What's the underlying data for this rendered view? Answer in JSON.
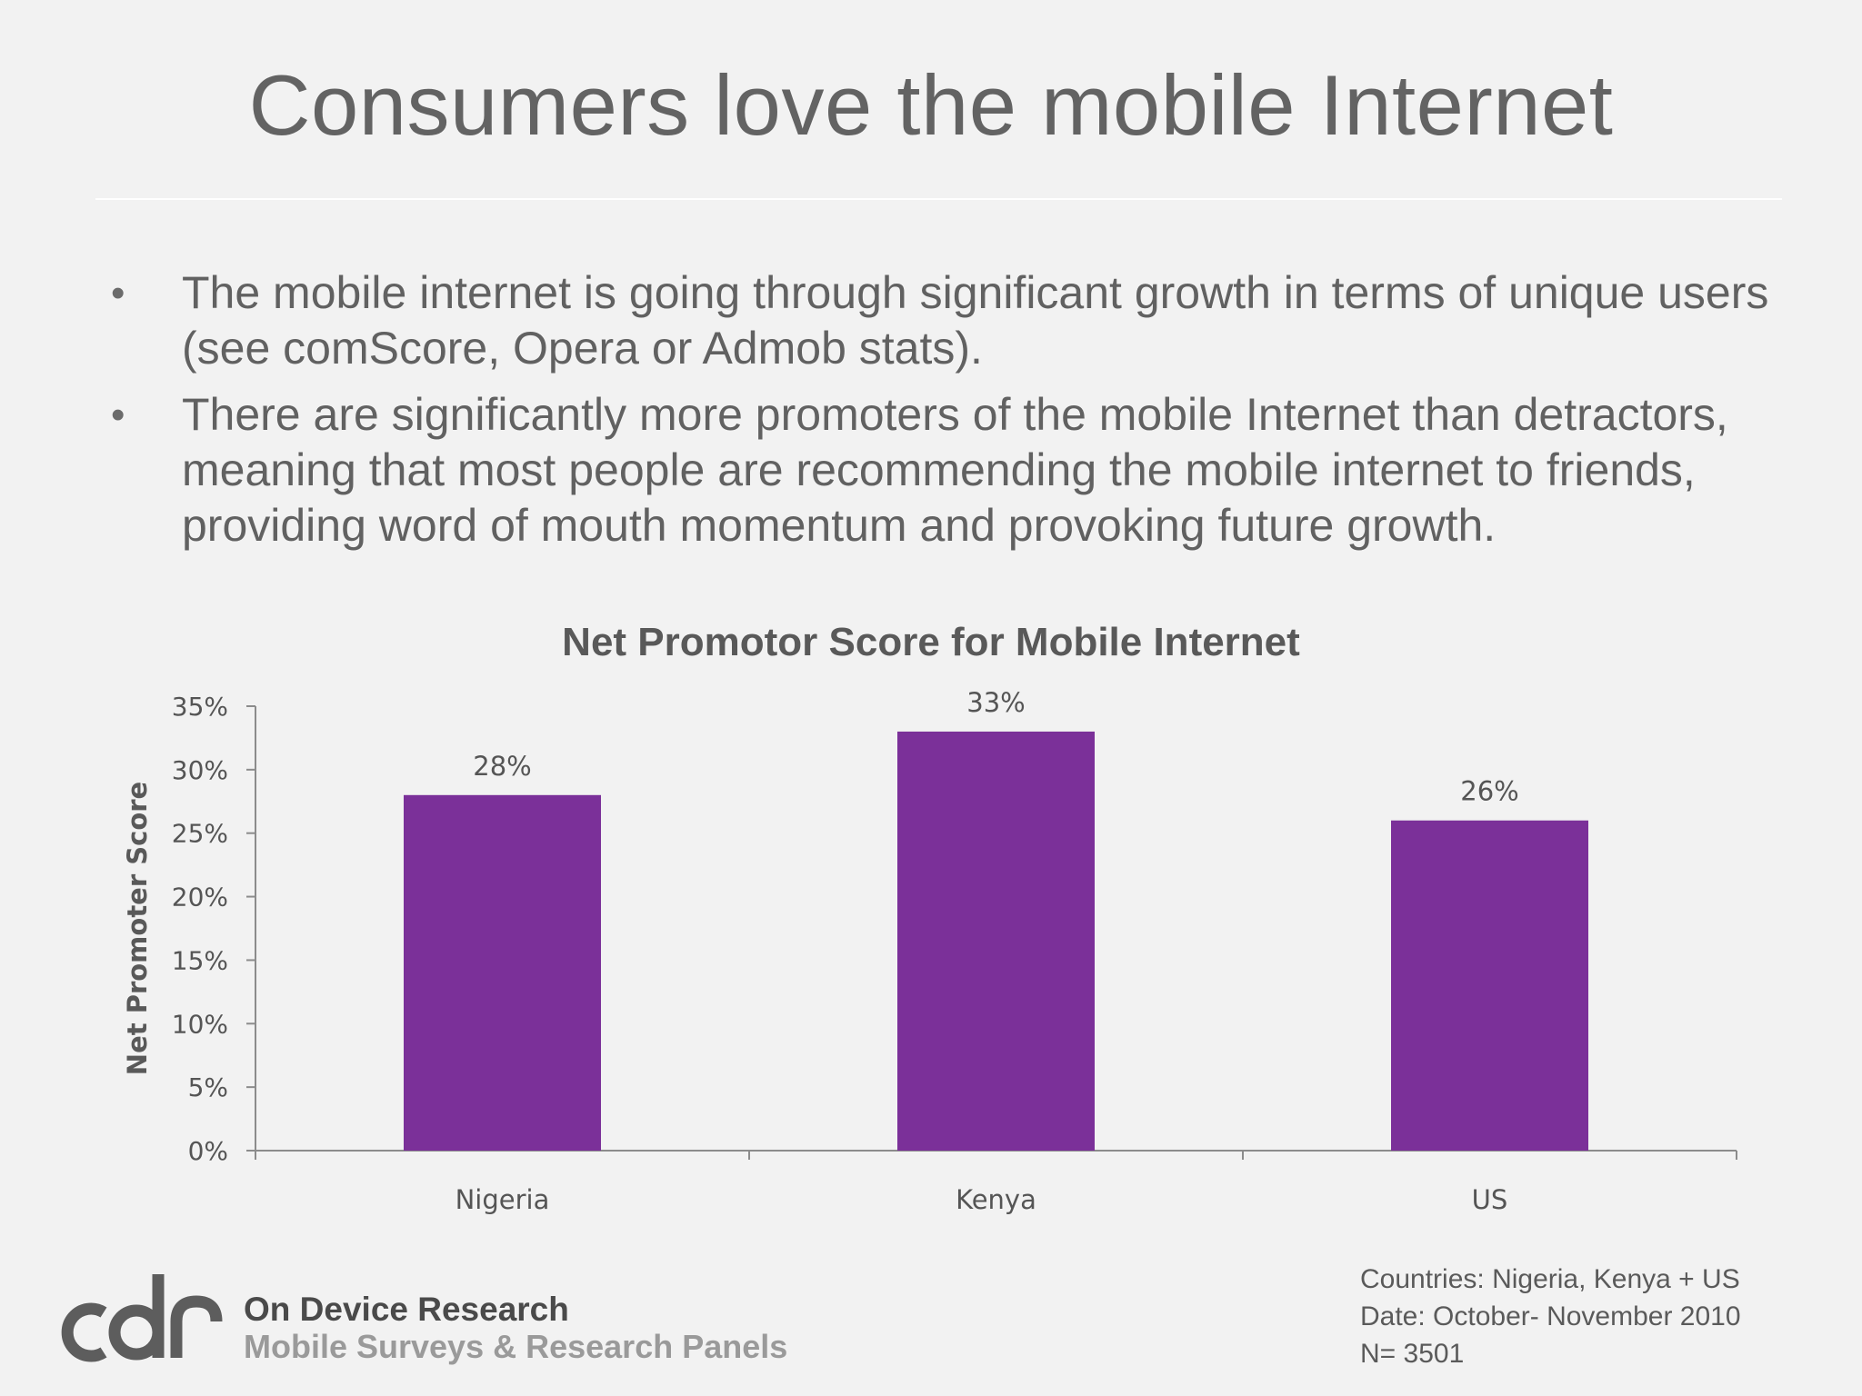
{
  "slide": {
    "title": "Consumers love the mobile Internet",
    "bullets": [
      "The mobile internet is going through significant growth in terms of unique users (see comScore, Opera or Admob stats).",
      "There are significantly more promoters of the mobile Internet than detractors, meaning that most people are recommending the mobile internet to friends, providing word of mouth momentum and provoking future growth."
    ],
    "bullet_symbol": "•"
  },
  "chart_data": {
    "type": "bar",
    "title": "Net Promotor Score for Mobile Internet",
    "xlabel": "",
    "ylabel": "Net Promoter Score",
    "categories": [
      "Nigeria",
      "Kenya",
      "US"
    ],
    "values": [
      28,
      33,
      26
    ],
    "value_labels": [
      "28%",
      "33%",
      "26%"
    ],
    "ylim": [
      0,
      35
    ],
    "yticks": [
      0,
      5,
      10,
      15,
      20,
      25,
      30,
      35
    ],
    "ytick_labels": [
      "0%",
      "5%",
      "10%",
      "15%",
      "20%",
      "25%",
      "30%",
      "35%"
    ],
    "bar_color": "#7b3099",
    "grid": false,
    "legend": "none"
  },
  "footer": {
    "logo_text": "cdr",
    "brand_name": "On Device Research",
    "brand_tagline": "Mobile Surveys & Research Panels",
    "notes": [
      "Countries: Nigeria, Kenya + US",
      "Date:  October- November 2010",
      "N= 3501"
    ]
  }
}
